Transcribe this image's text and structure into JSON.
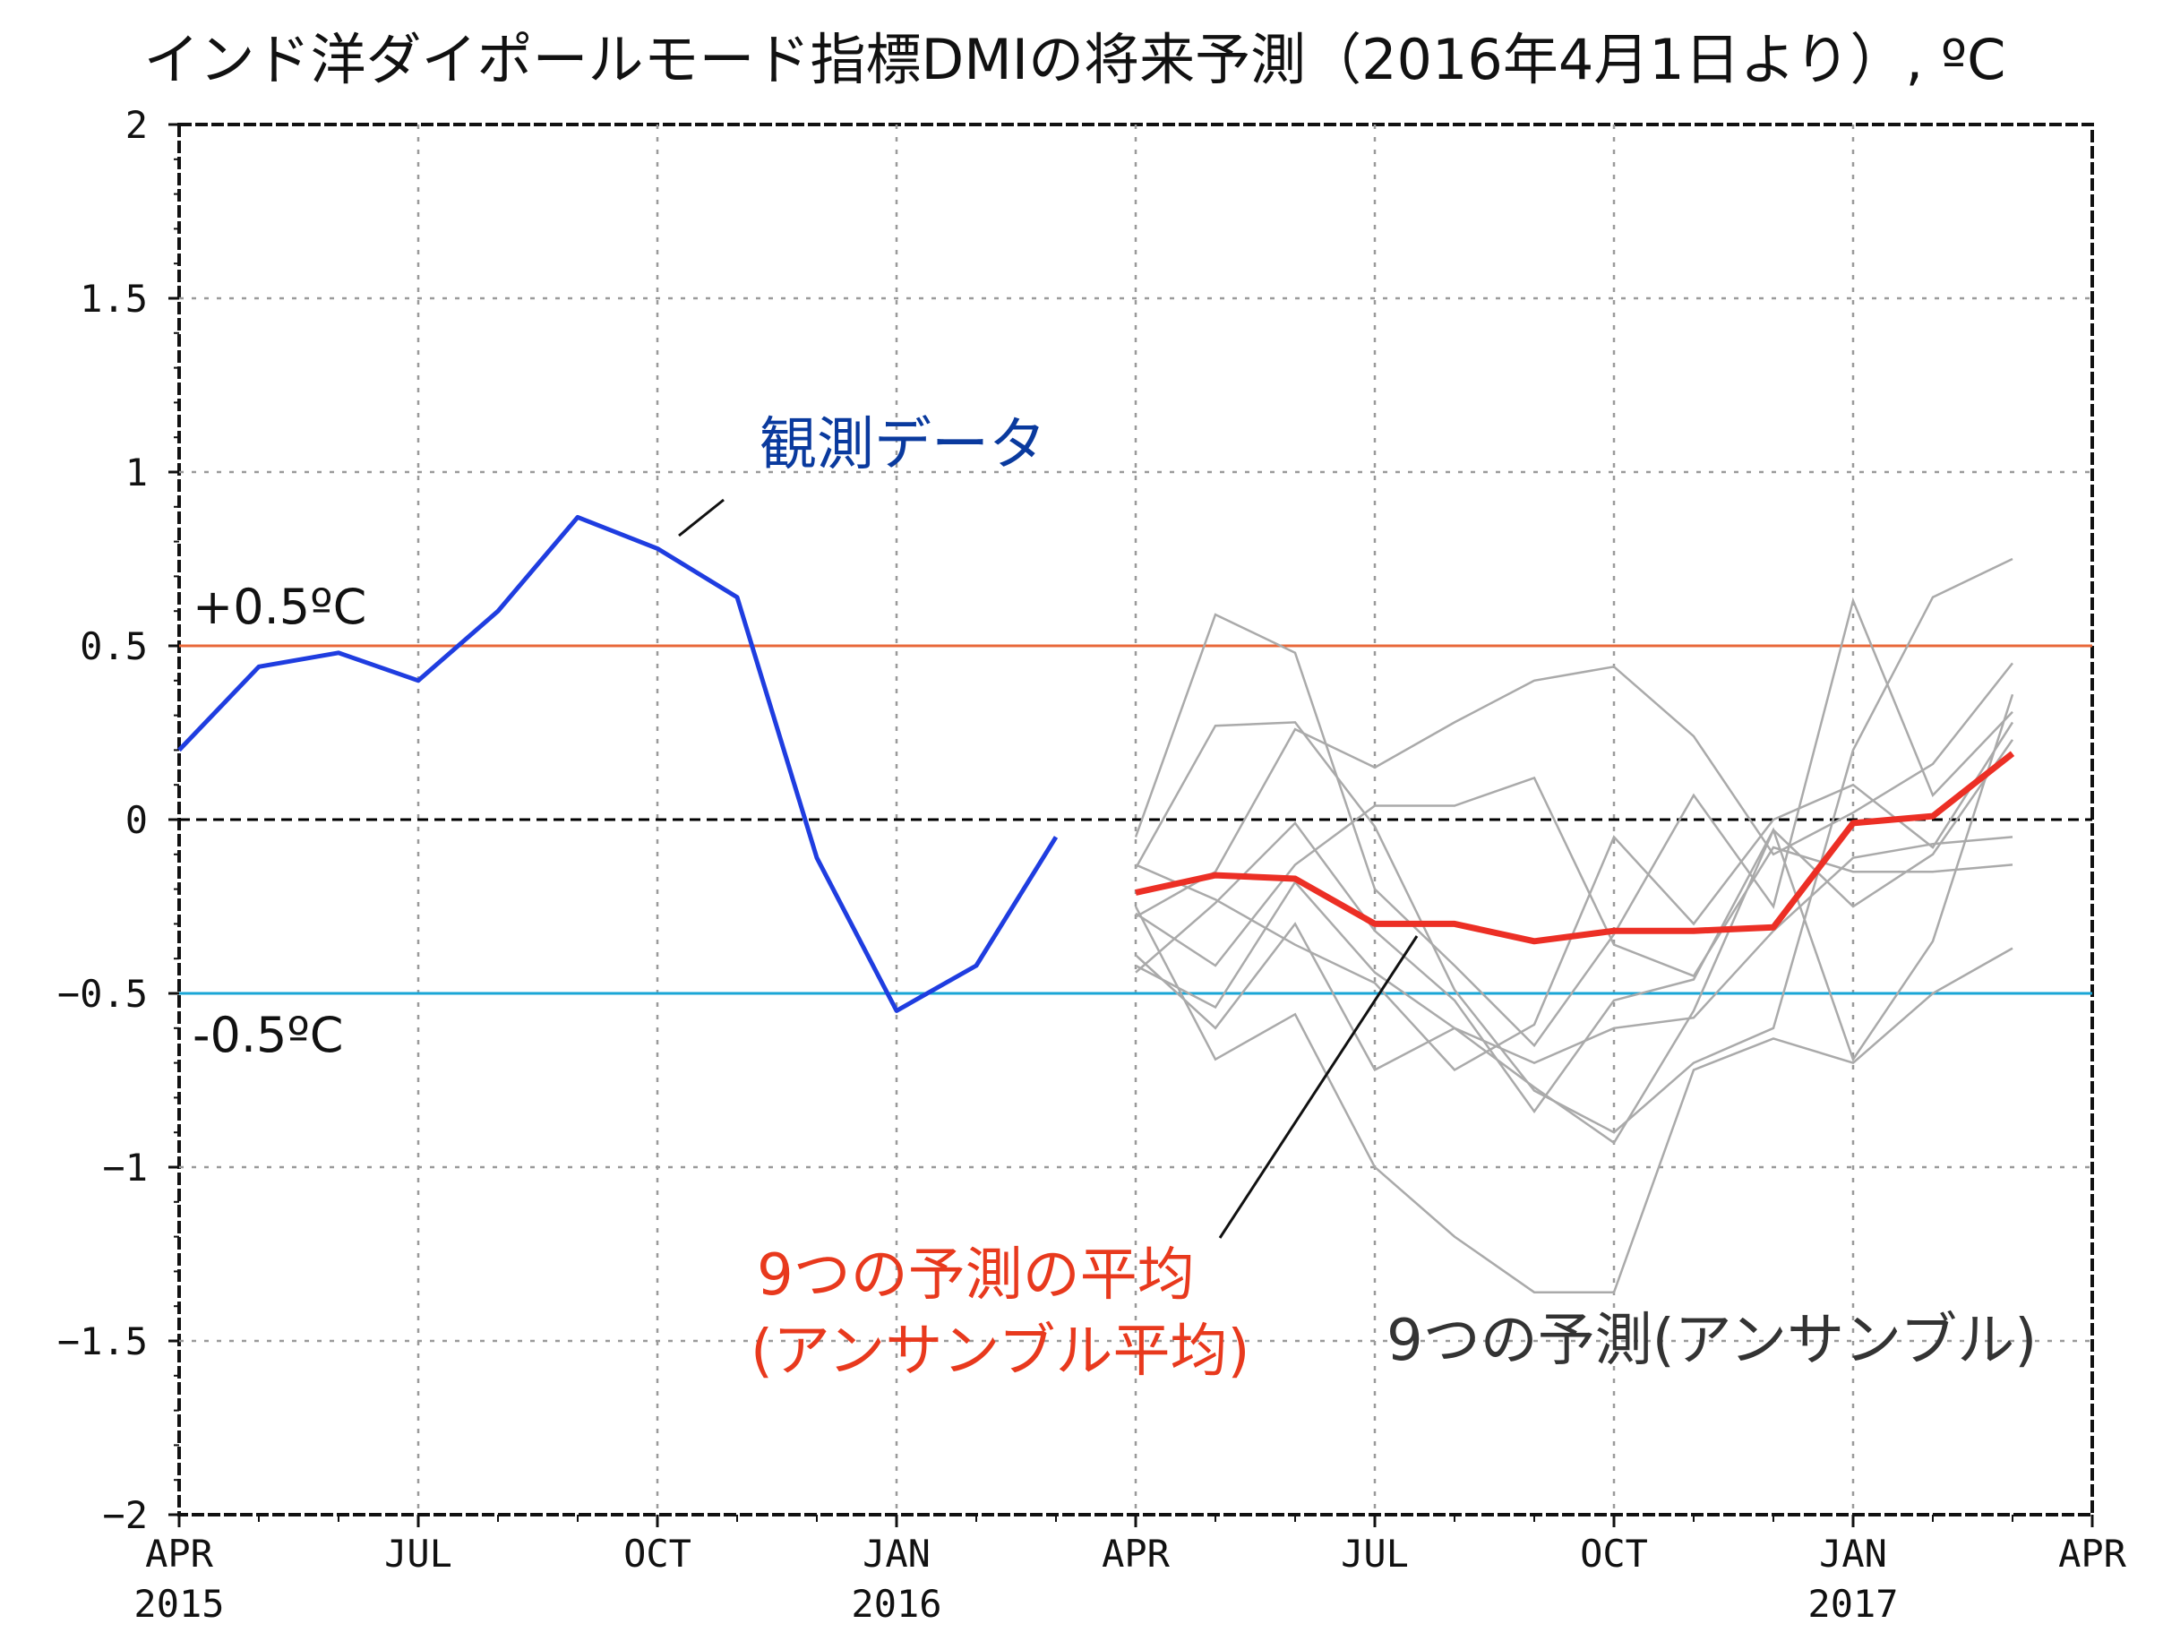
{
  "chart_data": {
    "type": "line",
    "title": "インド洋ダイポールモード指標DMIの将来予測（2016年4月1日より）, ºC",
    "ylim": [
      -2,
      2
    ],
    "yticks": [
      2,
      1.5,
      1,
      0.5,
      0,
      -0.5,
      -1,
      -1.5,
      -2
    ],
    "ytick_labels": [
      "2",
      "1.5",
      "1",
      "0.5",
      "0",
      "−0.5",
      "−1",
      "−1.5",
      "−2"
    ],
    "xlim": [
      "2015-04",
      "2017-04"
    ],
    "xticks": [
      {
        "month": "2015-04",
        "label": "APR",
        "year": "2015"
      },
      {
        "month": "2015-07",
        "label": "JUL",
        "year": ""
      },
      {
        "month": "2015-10",
        "label": "OCT",
        "year": ""
      },
      {
        "month": "2016-01",
        "label": "JAN",
        "year": "2016"
      },
      {
        "month": "2016-04",
        "label": "APR",
        "year": ""
      },
      {
        "month": "2016-07",
        "label": "JUL",
        "year": ""
      },
      {
        "month": "2016-10",
        "label": "OCT",
        "year": ""
      },
      {
        "month": "2017-01",
        "label": "JAN",
        "year": "2017"
      },
      {
        "month": "2017-04",
        "label": "APR",
        "year": ""
      }
    ],
    "grid": true,
    "threshold_lines": [
      {
        "value": 0.5,
        "label": "+0.5ºC",
        "color": "#e8683a"
      },
      {
        "value": -0.5,
        "label": "-0.5ºC",
        "color": "#1aa6d6"
      },
      {
        "value": 0,
        "label": "",
        "color": "#000000"
      }
    ],
    "annotations": [
      {
        "text": "観測データ",
        "color": "#0a3a9e"
      },
      {
        "text": "9つの予測の平均",
        "color": "#e8391d"
      },
      {
        "text": "(アンサンブル平均)",
        "color": "#e8391d"
      },
      {
        "text": "9つの予測(アンサンブル)",
        "color": "#333333"
      }
    ],
    "observed": {
      "color": "#1f3de0",
      "x": [
        "2015-04",
        "2015-05",
        "2015-06",
        "2015-07",
        "2015-08",
        "2015-09",
        "2015-10",
        "2015-11",
        "2015-12",
        "2016-01",
        "2016-02",
        "2016-03"
      ],
      "values": [
        0.2,
        0.44,
        0.48,
        0.4,
        0.6,
        0.87,
        0.78,
        0.64,
        -0.11,
        -0.55,
        -0.42,
        -0.05
      ]
    },
    "ensemble_mean": {
      "color": "#ec2f25",
      "x": [
        "2016-04",
        "2016-05",
        "2016-06",
        "2016-07",
        "2016-08",
        "2016-09",
        "2016-10",
        "2016-11",
        "2016-12",
        "2017-01",
        "2017-02",
        "2017-03"
      ],
      "values": [
        -0.21,
        -0.16,
        -0.17,
        -0.3,
        -0.3,
        -0.35,
        -0.32,
        -0.32,
        -0.31,
        -0.01,
        0.01,
        0.19
      ]
    },
    "ensemble_members": {
      "color": "#aaaaaa",
      "x": [
        "2016-04",
        "2016-05",
        "2016-06",
        "2016-07",
        "2016-08",
        "2016-09",
        "2016-10",
        "2016-11",
        "2016-12",
        "2017-01",
        "2017-02",
        "2017-03"
      ],
      "series": [
        {
          "values": [
            -0.05,
            0.59,
            0.48,
            -0.2,
            -0.42,
            -0.65,
            -0.33,
            0.07,
            -0.25,
            0.63,
            0.07,
            0.31
          ]
        },
        {
          "values": [
            -0.14,
            0.27,
            0.28,
            -0.02,
            -0.49,
            -0.78,
            -0.9,
            -0.7,
            -0.6,
            0.2,
            0.64,
            0.75
          ]
        },
        {
          "values": [
            -0.28,
            -0.15,
            0.26,
            0.15,
            0.28,
            0.4,
            0.44,
            0.24,
            -0.1,
            0.02,
            0.16,
            0.45
          ]
        },
        {
          "values": [
            -0.44,
            -0.24,
            -0.01,
            -0.32,
            -0.52,
            -0.84,
            -0.52,
            -0.46,
            -0.03,
            -0.25,
            -0.1,
            0.23
          ]
        },
        {
          "values": [
            -0.13,
            -0.23,
            -0.36,
            -0.47,
            -0.72,
            -0.59,
            -0.05,
            -0.3,
            0.0,
            0.1,
            -0.08,
            0.28
          ]
        },
        {
          "values": [
            -0.25,
            -0.69,
            -0.56,
            -1.0,
            -1.2,
            -1.36,
            -1.36,
            -0.72,
            -0.63,
            -0.7,
            -0.5,
            -0.37
          ]
        },
        {
          "values": [
            -0.27,
            -0.42,
            -0.13,
            0.04,
            0.04,
            0.12,
            -0.36,
            -0.45,
            -0.08,
            -0.15,
            -0.15,
            -0.13
          ]
        },
        {
          "values": [
            -0.42,
            -0.54,
            -0.18,
            -0.44,
            -0.6,
            -0.7,
            -0.6,
            -0.57,
            -0.32,
            -0.11,
            -0.07,
            -0.05
          ]
        },
        {
          "values": [
            -0.39,
            -0.6,
            -0.3,
            -0.72,
            -0.6,
            -0.77,
            -0.93,
            -0.55,
            -0.03,
            -0.69,
            -0.35,
            0.36
          ]
        }
      ]
    }
  }
}
